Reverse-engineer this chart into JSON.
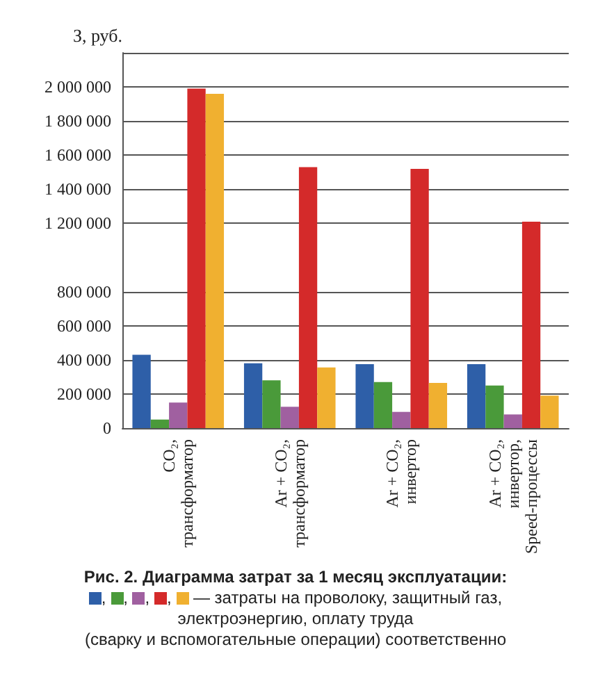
{
  "chart_data": {
    "type": "bar",
    "title": "Рис. 2. Диаграмма затрат за 1 месяц эксплуатации:",
    "ylabel": "З, руб.",
    "annotations": [
      ", , , , — затраты на проволоку, защитный газ,\nэлектроэнергию, оплату труда\n(сварку и вспомогательные операции) соответственно"
    ],
    "categories": [
      "CO₂,\nтрансформатор",
      "Ar + CO₂,\nтрансформатор",
      "Ar + CO₂,\nинвертор",
      "Ar + CO₂,\nинвертор,\nSpeed-процессы"
    ],
    "series": [
      {
        "color": "#2e5fa8",
        "values": [
          430000,
          380000,
          375000,
          375000
        ]
      },
      {
        "color": "#4a9a3a",
        "values": [
          50000,
          280000,
          270000,
          250000
        ]
      },
      {
        "color": "#a060a0",
        "values": [
          150000,
          125000,
          95000,
          80000
        ]
      },
      {
        "color": "#d42a2a",
        "values": [
          1990000,
          1530000,
          1520000,
          1210000
        ]
      },
      {
        "color": "#f0b030",
        "values": [
          1960000,
          355000,
          265000,
          190000
        ]
      }
    ],
    "ylim": [
      0,
      2200000
    ],
    "yticks": [
      {
        "value": 0,
        "label": "0"
      },
      {
        "value": 200000,
        "label": "200 000"
      },
      {
        "value": 400000,
        "label": "400 000"
      },
      {
        "value": 600000,
        "label": "600 000"
      },
      {
        "value": 800000,
        "label": "800 000"
      },
      {
        "value": 1200000,
        "label": "1 200 000"
      },
      {
        "value": 1400000,
        "label": "1 400 000"
      },
      {
        "value": 1600000,
        "label": "1 600 000"
      },
      {
        "value": 1800000,
        "label": "1 800 000"
      },
      {
        "value": 2000000,
        "label": "2 000 000"
      },
      {
        "value": 2200000,
        "label": null
      }
    ],
    "grid": "y"
  }
}
